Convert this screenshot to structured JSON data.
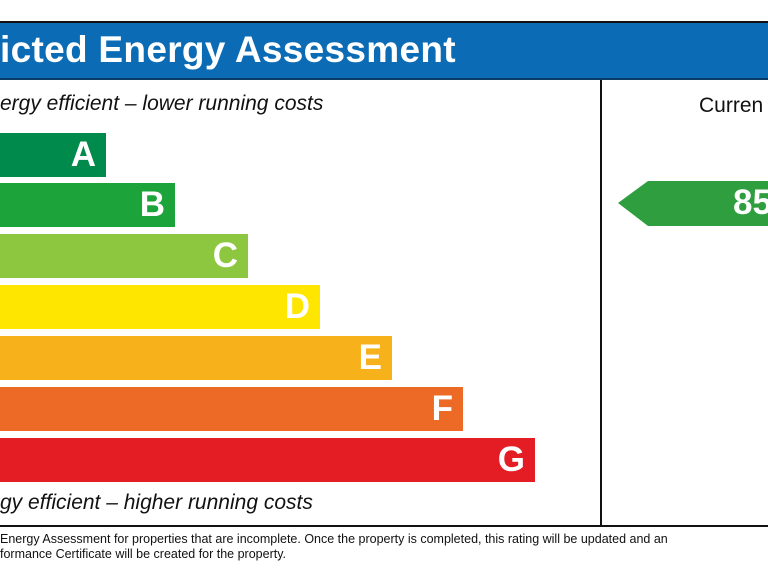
{
  "header": {
    "title": "icted Energy Assessment"
  },
  "captions": {
    "top": "ergy efficient – lower running costs",
    "bottom": "gy efficient – higher running costs"
  },
  "bands": [
    {
      "letter": "A",
      "color": "#008a4b"
    },
    {
      "letter": "B",
      "color": "#1ca33a"
    },
    {
      "letter": "C",
      "color": "#8dc63f"
    },
    {
      "letter": "D",
      "color": "#ffe600"
    },
    {
      "letter": "E",
      "color": "#f7b21b"
    },
    {
      "letter": "F",
      "color": "#ec6a25"
    },
    {
      "letter": "G",
      "color": "#e31d23"
    }
  ],
  "current": {
    "label": "Curren",
    "value": "85",
    "color": "#2e9e3e"
  },
  "footer": {
    "line1": " Energy Assessment for properties that are incomplete. Once the property is completed, this rating will be updated and an",
    "line2": "formance Certificate will be created for the property."
  }
}
